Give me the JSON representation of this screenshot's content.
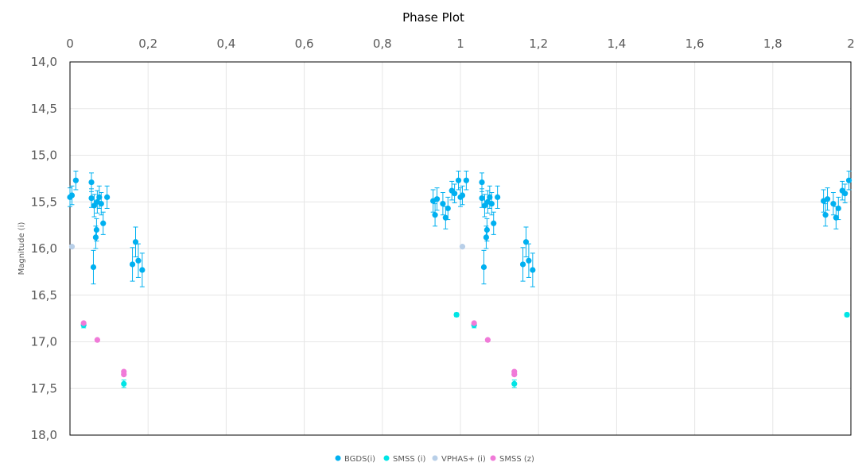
{
  "chart_data": {
    "type": "scatter",
    "title": "Phase Plot",
    "ylabel": "Magnitude (i)",
    "xlabel": "",
    "xlim": [
      0,
      2
    ],
    "ylim": [
      14.0,
      18.0
    ],
    "y_inverted": true,
    "x_axis_position": "top",
    "grid": true,
    "legend_position": "bottom",
    "x_ticks": [
      "0",
      "0,2",
      "0,4",
      "0,6",
      "0,8",
      "1",
      "1,2",
      "1,4",
      "1,6",
      "1,8",
      "2"
    ],
    "y_ticks": [
      "14,0",
      "14,5",
      "15,0",
      "15,5",
      "16,0",
      "16,5",
      "17,0",
      "17,5",
      "18,0"
    ],
    "series": [
      {
        "name": "BGDS(i)",
        "color": "#00b0f0",
        "error_bars": true,
        "points": [
          {
            "x": 0.0,
            "y": 15.45,
            "err": 0.1
          },
          {
            "x": 0.005,
            "y": 15.43,
            "err": 0.1
          },
          {
            "x": 0.015,
            "y": 15.27,
            "err": 0.1
          },
          {
            "x": 0.055,
            "y": 15.29,
            "err": 0.1
          },
          {
            "x": 0.055,
            "y": 15.46,
            "err": 0.1
          },
          {
            "x": 0.06,
            "y": 16.2,
            "err": 0.18
          },
          {
            "x": 0.062,
            "y": 15.54,
            "err": 0.12
          },
          {
            "x": 0.066,
            "y": 15.88,
            "err": 0.12
          },
          {
            "x": 0.068,
            "y": 15.8,
            "err": 0.12
          },
          {
            "x": 0.07,
            "y": 15.5,
            "err": 0.12
          },
          {
            "x": 0.075,
            "y": 15.45,
            "err": 0.12
          },
          {
            "x": 0.08,
            "y": 15.52,
            "err": 0.12
          },
          {
            "x": 0.085,
            "y": 15.73,
            "err": 0.12
          },
          {
            "x": 0.095,
            "y": 15.45,
            "err": 0.12
          },
          {
            "x": 0.16,
            "y": 16.17,
            "err": 0.18
          },
          {
            "x": 0.168,
            "y": 15.93,
            "err": 0.16
          },
          {
            "x": 0.175,
            "y": 16.13,
            "err": 0.18
          },
          {
            "x": 0.185,
            "y": 16.23,
            "err": 0.18
          },
          {
            "x": 0.93,
            "y": 15.49,
            "err": 0.12
          },
          {
            "x": 0.935,
            "y": 15.64,
            "err": 0.12
          },
          {
            "x": 0.94,
            "y": 15.47,
            "err": 0.12
          },
          {
            "x": 0.955,
            "y": 15.52,
            "err": 0.12
          },
          {
            "x": 0.962,
            "y": 15.67,
            "err": 0.12
          },
          {
            "x": 0.968,
            "y": 15.57,
            "err": 0.12
          },
          {
            "x": 0.978,
            "y": 15.38,
            "err": 0.1
          },
          {
            "x": 0.985,
            "y": 15.41,
            "err": 0.1
          },
          {
            "x": 0.995,
            "y": 15.27,
            "err": 0.1
          },
          {
            "x": 1.0,
            "y": 15.45,
            "err": 0.1
          },
          {
            "x": 1.005,
            "y": 15.43,
            "err": 0.1
          },
          {
            "x": 1.015,
            "y": 15.27,
            "err": 0.1
          },
          {
            "x": 1.055,
            "y": 15.29,
            "err": 0.1
          },
          {
            "x": 1.055,
            "y": 15.46,
            "err": 0.1
          },
          {
            "x": 1.06,
            "y": 16.2,
            "err": 0.18
          },
          {
            "x": 1.062,
            "y": 15.54,
            "err": 0.12
          },
          {
            "x": 1.066,
            "y": 15.88,
            "err": 0.12
          },
          {
            "x": 1.068,
            "y": 15.8,
            "err": 0.12
          },
          {
            "x": 1.07,
            "y": 15.5,
            "err": 0.12
          },
          {
            "x": 1.075,
            "y": 15.45,
            "err": 0.12
          },
          {
            "x": 1.08,
            "y": 15.52,
            "err": 0.12
          },
          {
            "x": 1.085,
            "y": 15.73,
            "err": 0.12
          },
          {
            "x": 1.095,
            "y": 15.45,
            "err": 0.12
          },
          {
            "x": 1.16,
            "y": 16.17,
            "err": 0.18
          },
          {
            "x": 1.168,
            "y": 15.93,
            "err": 0.16
          },
          {
            "x": 1.175,
            "y": 16.13,
            "err": 0.18
          },
          {
            "x": 1.185,
            "y": 16.23,
            "err": 0.18
          },
          {
            "x": 1.93,
            "y": 15.49,
            "err": 0.12
          },
          {
            "x": 1.935,
            "y": 15.64,
            "err": 0.12
          },
          {
            "x": 1.94,
            "y": 15.47,
            "err": 0.12
          },
          {
            "x": 1.955,
            "y": 15.52,
            "err": 0.12
          },
          {
            "x": 1.962,
            "y": 15.67,
            "err": 0.12
          },
          {
            "x": 1.968,
            "y": 15.57,
            "err": 0.12
          },
          {
            "x": 1.978,
            "y": 15.38,
            "err": 0.1
          },
          {
            "x": 1.985,
            "y": 15.41,
            "err": 0.1
          },
          {
            "x": 1.995,
            "y": 15.27,
            "err": 0.1
          }
        ]
      },
      {
        "name": "SMSS (i)",
        "color": "#00e5e5",
        "error_bars": true,
        "points": [
          {
            "x": 0.035,
            "y": 16.82,
            "err": 0.03
          },
          {
            "x": 0.138,
            "y": 17.45,
            "err": 0.04
          },
          {
            "x": 0.99,
            "y": 16.71,
            "err": 0.02
          },
          {
            "x": 1.035,
            "y": 16.82,
            "err": 0.03
          },
          {
            "x": 1.138,
            "y": 17.45,
            "err": 0.04
          },
          {
            "x": 1.99,
            "y": 16.71,
            "err": 0.02
          }
        ]
      },
      {
        "name": "VPHAS+ (i)",
        "color": "#b8cfe8",
        "error_bars": false,
        "points": [
          {
            "x": 0.005,
            "y": 15.98,
            "err": 0
          },
          {
            "x": 1.005,
            "y": 15.98,
            "err": 0
          }
        ]
      },
      {
        "name": "SMSS (z)",
        "color": "#f07ad8",
        "error_bars": false,
        "points": [
          {
            "x": 0.035,
            "y": 16.8,
            "err": 0
          },
          {
            "x": 0.07,
            "y": 16.98,
            "err": 0
          },
          {
            "x": 0.138,
            "y": 17.32,
            "err": 0
          },
          {
            "x": 0.138,
            "y": 17.35,
            "err": 0
          },
          {
            "x": 1.035,
            "y": 16.8,
            "err": 0
          },
          {
            "x": 1.07,
            "y": 16.98,
            "err": 0
          },
          {
            "x": 1.138,
            "y": 17.32,
            "err": 0
          },
          {
            "x": 1.138,
            "y": 17.35,
            "err": 0
          }
        ]
      }
    ]
  }
}
